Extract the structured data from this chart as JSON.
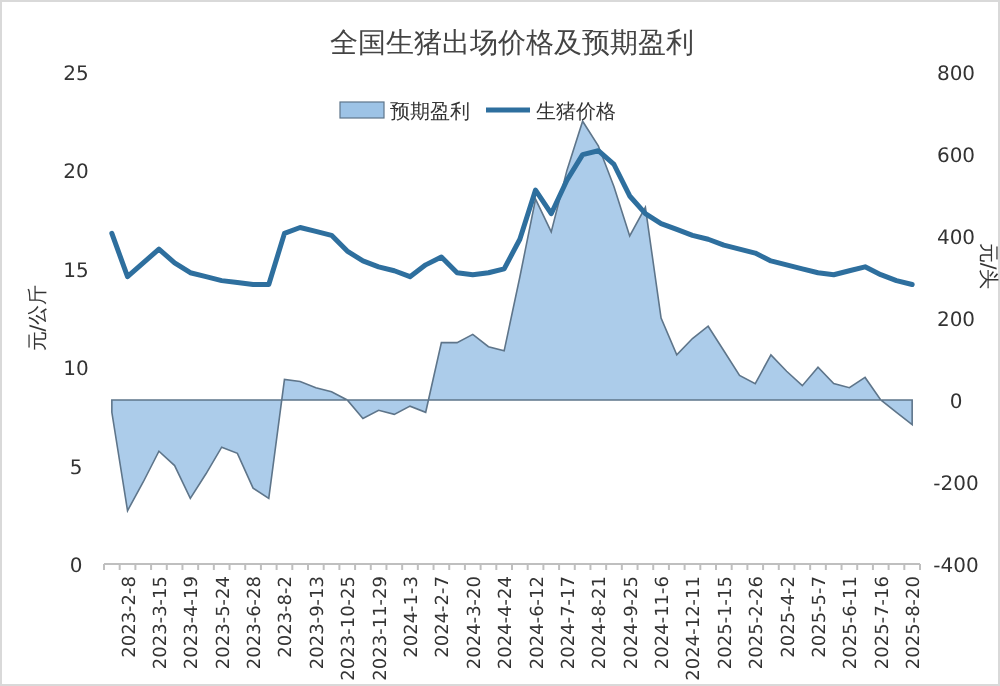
{
  "chart_data": {
    "type": "line",
    "title": "全国生猪出场价格及预期盈利",
    "ylabel": "元/公斤",
    "y2label": "元/头",
    "categories": [
      null,
      "2023-2-8",
      null,
      "2023-3-15",
      null,
      "2023-4-19",
      null,
      "2023-5-24",
      null,
      "2023-6-28",
      null,
      "2023-8-2",
      null,
      "2023-9-13",
      null,
      "2023-10-25",
      null,
      "2023-11-29",
      null,
      "2024-1-3",
      null,
      "2024-2-7",
      null,
      "2024-3-20",
      null,
      "2024-4-24",
      null,
      "2024-6-12",
      null,
      "2024-7-17",
      null,
      "2024-8-21",
      null,
      "2024-9-25",
      null,
      "2024-11-6",
      null,
      "2024-12-11",
      null,
      "2025-1-15",
      null,
      "2025-2-26",
      null,
      "2025-4-2",
      null,
      "2025-5-7",
      null,
      "2025-6-11",
      null,
      "2025-7-16",
      null,
      "2025-8-20"
    ],
    "series": [
      {
        "name": "预期盈利",
        "type": "area",
        "axis": "y2",
        "color": "#9dc3e6",
        "values": [
          -30,
          -270,
          -200,
          -125,
          -160,
          -240,
          -180,
          -115,
          -130,
          -215,
          -240,
          50,
          45,
          30,
          20,
          0,
          -45,
          -25,
          -35,
          -15,
          -30,
          140,
          140,
          160,
          130,
          120,
          300,
          490,
          410,
          560,
          680,
          620,
          520,
          400,
          470,
          200,
          110,
          150,
          180,
          120,
          60,
          40,
          110,
          70,
          35,
          80,
          40,
          30,
          55,
          0,
          -30,
          -60
        ]
      },
      {
        "name": "生猪价格",
        "type": "line",
        "color": "#2e6f9e",
        "values": [
          16.8,
          14.6,
          15.3,
          16.0,
          15.3,
          14.8,
          14.6,
          14.4,
          14.3,
          14.2,
          14.2,
          16.8,
          17.1,
          16.9,
          16.7,
          15.9,
          15.4,
          15.1,
          14.9,
          14.6,
          15.2,
          15.6,
          14.8,
          14.7,
          14.8,
          15.0,
          16.5,
          19.0,
          17.8,
          19.5,
          20.8,
          21.0,
          20.3,
          18.7,
          17.8,
          17.3,
          17.0,
          16.7,
          16.5,
          16.2,
          16.0,
          15.8,
          15.4,
          15.2,
          15.0,
          14.8,
          14.7,
          14.9,
          15.1,
          14.7,
          14.4,
          14.2
        ]
      }
    ],
    "ylim": [
      0,
      25
    ],
    "yticks": [
      0,
      5,
      10,
      15,
      20,
      25
    ],
    "y2lim": [
      -400,
      800
    ],
    "y2ticks": [
      -400,
      -200,
      0,
      200,
      400,
      600,
      800
    ],
    "legend": "top"
  }
}
